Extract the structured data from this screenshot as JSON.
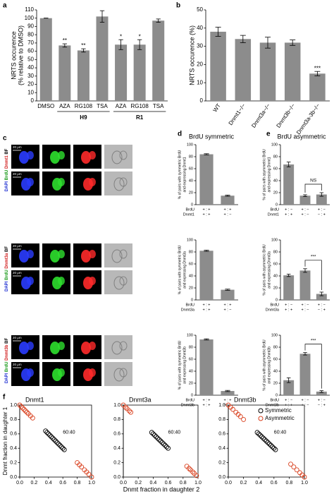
{
  "panel_labels": [
    "a",
    "b",
    "c",
    "d",
    "e",
    "f"
  ],
  "panel_c": {
    "groups": [
      {
        "stains": [
          "DAPI",
          "BrdU",
          "Dnmt1",
          "BF"
        ],
        "scale": [
          "20 μm",
          "20 μm"
        ]
      },
      {
        "stains": [
          "DAPI",
          "BrdU",
          "Dnmt3a",
          "BF"
        ],
        "scale": [
          "20 μm",
          "20 μm"
        ]
      },
      {
        "stains": [
          "DAPI",
          "BrdU",
          "Dnmt3b",
          "BF"
        ],
        "scale": [
          "20 μm",
          "20 μm"
        ]
      }
    ]
  },
  "chart_data": [
    {
      "type": "bar",
      "ylabel": [
        "NRTS occurence",
        "(% relative to DMSO)"
      ],
      "categories": [
        "DMSO",
        "AZA",
        "RG108",
        "TSA",
        "AZA",
        "RG108",
        "TSA"
      ],
      "values": [
        100,
        67,
        61,
        102,
        68,
        68,
        97
      ],
      "errors": [
        0,
        2,
        2,
        7,
        6,
        6,
        2
      ],
      "significance": [
        null,
        "**",
        "**",
        null,
        "*",
        "*",
        null
      ],
      "group_labels": [
        "H9",
        "R1"
      ],
      "color": "#8c8c8c",
      "ylim": [
        0,
        110
      ],
      "yticks": [
        0,
        10,
        20,
        30,
        40,
        50,
        60,
        70,
        80,
        90,
        100,
        110
      ]
    },
    {
      "type": "bar",
      "ylabel": [
        "NRTS occurence (%)"
      ],
      "categories": [
        "WT",
        "Dnmt1−/−",
        "Dnmt3a−/−",
        "Dnmt3b−/−",
        "Dnmt3a-3b−/−"
      ],
      "values": [
        38,
        34,
        32,
        32,
        15
      ],
      "errors": [
        2.5,
        2,
        3,
        1.5,
        1.2
      ],
      "significance": [
        null,
        null,
        null,
        null,
        "***"
      ],
      "color": "#8c8c8c",
      "ylim": [
        0,
        50
      ],
      "yticks": [
        0,
        10,
        20,
        30,
        40,
        50
      ]
    },
    {
      "type": "bar",
      "title": "BrdU symmetric",
      "ylabel": [
        "% of pairs with symmetric BrdU",
        "and expressing Dnmt1"
      ],
      "row_labels": [
        "BrdU",
        "Dnmt1"
      ],
      "categories": [
        [
          "+ : +",
          "+ : +"
        ],
        [
          "+ : +",
          "+ : −"
        ]
      ],
      "values": [
        84,
        15
      ],
      "errors": [
        1,
        1
      ],
      "color": "#8c8c8c",
      "ylim": [
        0,
        100
      ],
      "yticks": [
        0,
        20,
        40,
        60,
        80,
        100
      ]
    },
    {
      "type": "bar",
      "ylabel": [
        "% of pairs with symmetric BrdU",
        "and expressing Dnmt3a"
      ],
      "row_labels": [
        "BrdU",
        "Dnmt3a"
      ],
      "categories": [
        [
          "+ : +",
          "+ : +"
        ],
        [
          "+ : +",
          "+ : −"
        ]
      ],
      "values": [
        82,
        17
      ],
      "errors": [
        1,
        1
      ],
      "color": "#8c8c8c",
      "ylim": [
        0,
        100
      ],
      "yticks": [
        0,
        20,
        40,
        60,
        80,
        100
      ]
    },
    {
      "type": "bar",
      "ylabel": [
        "% of pairs with symmetric BrdU",
        "and expressing Dnmt3b"
      ],
      "row_labels": [
        "BrdU",
        "Dnmt3b"
      ],
      "categories": [
        [
          "+ : +",
          "+ : +"
        ],
        [
          "+ : +",
          "+ : −"
        ]
      ],
      "values": [
        93,
        7
      ],
      "errors": [
        1,
        1
      ],
      "color": "#8c8c8c",
      "ylim": [
        0,
        100
      ],
      "yticks": [
        0,
        20,
        40,
        60,
        80,
        100
      ]
    },
    {
      "type": "bar",
      "title": "BrdU asymmetric",
      "ylabel": [
        "% of pairs with asymmetric BrdU",
        "and expressing Dnmt1"
      ],
      "row_labels": [
        "BrdU",
        "Dnmt1"
      ],
      "categories": [
        [
          "+ : −",
          "+ : +"
        ],
        [
          "+ : −",
          "+ : −"
        ],
        [
          "+ : −",
          "− : +"
        ]
      ],
      "values": [
        67,
        15,
        17
      ],
      "errors": [
        4,
        1.5,
        3
      ],
      "bracket_label": "NS",
      "color": "#8c8c8c",
      "ylim": [
        0,
        100
      ],
      "yticks": [
        0,
        20,
        40,
        60,
        80,
        100
      ]
    },
    {
      "type": "bar",
      "ylabel": [
        "% of pairs with asymmetric BrdU",
        "and expressing Dnmt3a"
      ],
      "row_labels": [
        "BrdU",
        "Dnmt3a"
      ],
      "categories": [
        [
          "+ : −",
          "+ : +"
        ],
        [
          "+ : −",
          "+ : −"
        ],
        [
          "+ : −",
          "− : +"
        ]
      ],
      "values": [
        41,
        49,
        10
      ],
      "errors": [
        2,
        3,
        3
      ],
      "bracket_label": "***",
      "color": "#8c8c8c",
      "ylim": [
        0,
        100
      ],
      "yticks": [
        0,
        20,
        40,
        60,
        80,
        100
      ]
    },
    {
      "type": "bar",
      "ylabel": [
        "% of pairs with asymmetric BrdU",
        "and expressing Dnmt3b"
      ],
      "row_labels": [
        "BrdU",
        "Dnmt3b"
      ],
      "categories": [
        [
          "+ : −",
          "+ : +"
        ],
        [
          "+ : −",
          "+ : −"
        ],
        [
          "+ : −",
          "− : +"
        ]
      ],
      "values": [
        25,
        69,
        6
      ],
      "errors": [
        4,
        2,
        1.5
      ],
      "bracket_label": "***",
      "color": "#8c8c8c",
      "ylim": [
        0,
        100
      ],
      "yticks": [
        0,
        20,
        40,
        60,
        80,
        100
      ]
    },
    {
      "type": "scatter",
      "title": "Dnmt1",
      "ylabel": [
        "Dnmt fraction in daughter 1"
      ],
      "annotation": "60:40",
      "series": [
        {
          "color": "#000000",
          "x": [
            0.36,
            0.38,
            0.4,
            0.42,
            0.44,
            0.46,
            0.48,
            0.5,
            0.52,
            0.54,
            0.56,
            0.58,
            0.6,
            0.62
          ],
          "y": [
            0.64,
            0.62,
            0.6,
            0.58,
            0.56,
            0.54,
            0.52,
            0.5,
            0.48,
            0.46,
            0.44,
            0.42,
            0.4,
            0.38
          ]
        },
        {
          "color": "#d9401e",
          "x": [
            0,
            0.02,
            0.04,
            0.06,
            0.08,
            0.1,
            0.12,
            0.15,
            0.18,
            0.8,
            0.83,
            0.86,
            0.9,
            0.93,
            0.96,
            1
          ],
          "y": [
            1,
            0.98,
            0.96,
            0.94,
            0.92,
            0.9,
            0.88,
            0.85,
            0.82,
            0.2,
            0.17,
            0.14,
            0.1,
            0.07,
            0.04,
            0
          ]
        }
      ],
      "xlim": [
        0,
        1
      ],
      "ylim": [
        0,
        1
      ],
      "xticks": [
        {
          "value": 0,
          "label": "0.0"
        },
        0.2,
        0.4,
        0.6,
        0.8,
        {
          "value": 1,
          "label": "1.0"
        }
      ],
      "yticks": [
        {
          "value": 0,
          "label": "0.0"
        },
        0.2,
        0.4,
        0.6,
        0.8,
        {
          "value": 1,
          "label": "1.0"
        }
      ]
    },
    {
      "type": "scatter",
      "title": "Dnmt3a",
      "xlabel": "Dnmt fraction in daughter 2",
      "annotation": "60:40",
      "series": [
        {
          "color": "#000000",
          "x": [
            0.38,
            0.4,
            0.42,
            0.44,
            0.46,
            0.48,
            0.5,
            0.52,
            0.54,
            0.56,
            0.58,
            0.6
          ],
          "y": [
            0.62,
            0.6,
            0.58,
            0.56,
            0.54,
            0.52,
            0.5,
            0.48,
            0.46,
            0.44,
            0.42,
            0.4
          ]
        },
        {
          "color": "#d9401e",
          "x": [
            0,
            0.03,
            0.05,
            0.08,
            0.1,
            0.85,
            0.88,
            0.9,
            0.93,
            0.95,
            0.98
          ],
          "y": [
            1,
            0.97,
            0.95,
            0.92,
            0.9,
            0.15,
            0.12,
            0.1,
            0.07,
            0.05,
            0.02
          ]
        }
      ],
      "xlim": [
        0,
        1
      ],
      "ylim": [
        0,
        1
      ],
      "xticks": [
        {
          "value": 0,
          "label": "0.0"
        },
        0.2,
        0.4,
        0.6,
        0.8,
        {
          "value": 1,
          "label": "1.0"
        }
      ],
      "yticks": [
        {
          "value": 0,
          "label": "0.0"
        },
        0.2,
        0.4,
        0.6,
        0.8,
        {
          "value": 1,
          "label": "1.0"
        }
      ]
    },
    {
      "type": "scatter",
      "title": "Dnmt3b",
      "annotation": "60:40",
      "legend": "upper right",
      "series": [
        {
          "name": "Symmetric",
          "color": "#000000",
          "x": [
            0.38,
            0.4,
            0.42,
            0.44,
            0.46,
            0.48,
            0.5,
            0.52,
            0.54,
            0.56,
            0.58,
            0.6,
            0.62
          ],
          "y": [
            0.62,
            0.6,
            0.58,
            0.56,
            0.54,
            0.52,
            0.5,
            0.48,
            0.46,
            0.44,
            0.42,
            0.4,
            0.38
          ]
        },
        {
          "name": "Asymmetric",
          "color": "#d9401e",
          "x": [
            0,
            0.03,
            0.06,
            0.1,
            0.13,
            0.16,
            0.2,
            0.82,
            0.86,
            0.9,
            0.94,
            0.97,
            1
          ],
          "y": [
            1,
            0.97,
            0.94,
            0.9,
            0.87,
            0.84,
            0.8,
            0.18,
            0.14,
            0.1,
            0.06,
            0.03,
            0
          ]
        }
      ],
      "xlim": [
        0,
        1
      ],
      "ylim": [
        0,
        1
      ],
      "xticks": [
        {
          "value": 0,
          "label": "0.0"
        },
        0.2,
        0.4,
        0.6,
        0.8,
        {
          "value": 1,
          "label": "1.0"
        }
      ],
      "yticks": [
        {
          "value": 0,
          "label": "0.0"
        },
        0.2,
        0.4,
        0.6,
        0.8,
        {
          "value": 1,
          "label": "1.0"
        }
      ]
    }
  ]
}
